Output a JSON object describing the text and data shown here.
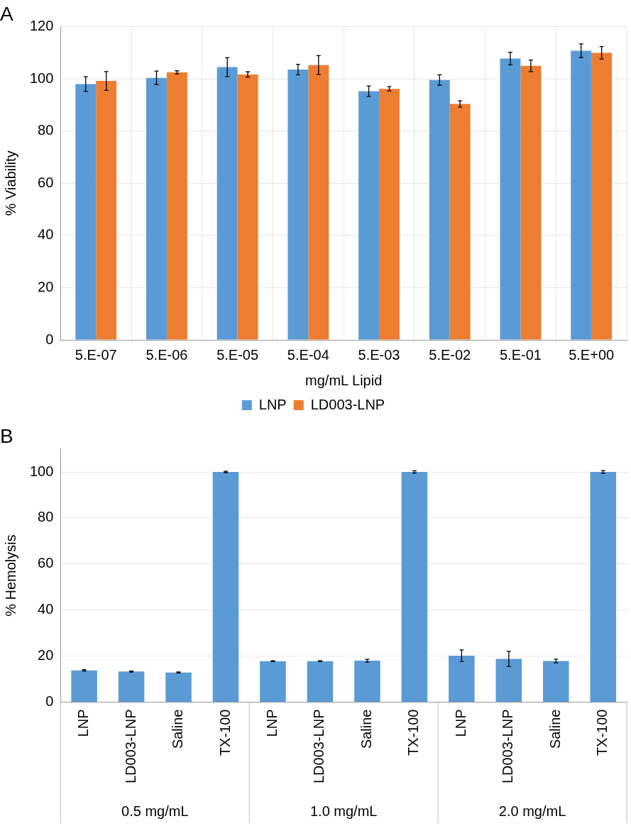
{
  "chart_data": [
    {
      "type": "bar",
      "title": "A",
      "xlabel": "mg/mL Lipid",
      "ylabel": "% Viability",
      "categories": [
        "5.E-07",
        "5.E-06",
        "5.E-05",
        "5.E-04",
        "5.E-03",
        "5.E-02",
        "5.E-01",
        "5.E+00"
      ],
      "series": [
        {
          "name": "LNP",
          "color": "#5b9bd5",
          "values": [
            98.0,
            100.4,
            104.5,
            103.6,
            95.3,
            99.6,
            107.8,
            110.8
          ],
          "errors": [
            2.8,
            2.6,
            3.6,
            2,
            2,
            2,
            2.4,
            2.6
          ]
        },
        {
          "name": "LD003-LNP",
          "color": "#ed7d31",
          "values": [
            99.2,
            102.5,
            101.7,
            105.3,
            96.2,
            90.4,
            105.0,
            110.0
          ],
          "errors": [
            3.6,
            0.6,
            1,
            3.6,
            0.8,
            1.2,
            2.2,
            2.4
          ]
        }
      ],
      "ylim": [
        0,
        120
      ],
      "yticks": [
        0,
        20,
        40,
        60,
        80,
        100,
        120
      ],
      "grid": true,
      "legend": "bottom"
    },
    {
      "type": "bar",
      "title": "B",
      "ylabel": "% Hemolysis",
      "categories": [
        "LNP",
        "LD003-LNP",
        "Saline",
        "TX-100",
        "LNP",
        "LD003-LNP",
        "Saline",
        "TX-100",
        "LNP",
        "LD003-LNP",
        "Saline",
        "TX-100"
      ],
      "series": [
        {
          "color": "#5b9bd5",
          "values": [
            13.8,
            13.3,
            12.9,
            100,
            17.8,
            17.8,
            18.0,
            100,
            20.2,
            18.8,
            17.9,
            100
          ],
          "errors": [
            0.3,
            0.2,
            0.2,
            0.3,
            0.2,
            0.2,
            0.6,
            0.5,
            2.5,
            3.3,
            0.8,
            0.6
          ]
        }
      ],
      "ylim": [
        0,
        110
      ],
      "yticks": [
        0,
        20,
        40,
        60,
        80,
        100
      ],
      "grid": "y",
      "annotations": [
        "0.5 mg/mL",
        "1.0 mg/mL",
        "2.0 mg/mL"
      ]
    }
  ]
}
